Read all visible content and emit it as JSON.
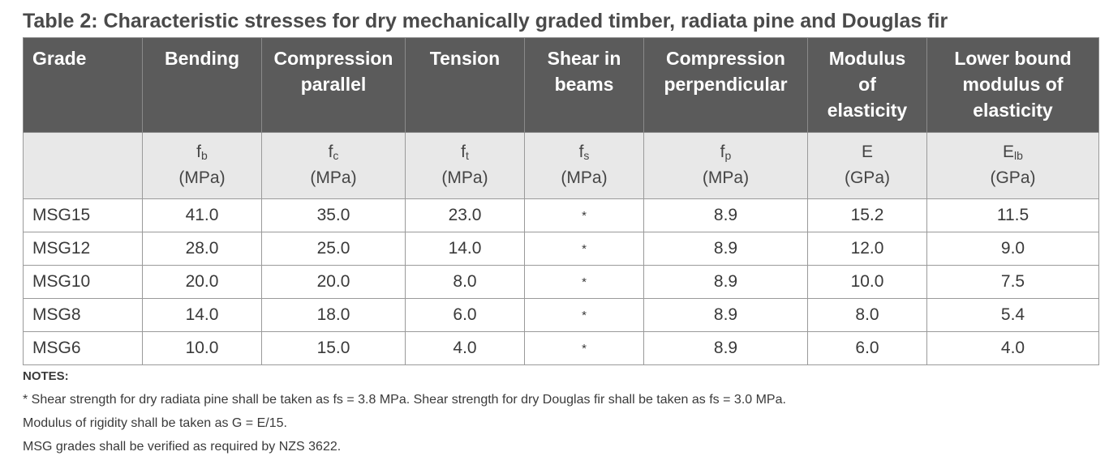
{
  "title": "Table 2: Characteristic stresses for dry mechanically graded timber, radiata pine and Douglas fir",
  "headers": [
    [
      "Grade"
    ],
    [
      "Bending"
    ],
    [
      "Compression",
      "parallel"
    ],
    [
      "Tension"
    ],
    [
      "Shear in",
      "beams"
    ],
    [
      "Compression",
      "perpendicular"
    ],
    [
      "Modulus",
      "of",
      "elasticity"
    ],
    [
      "Lower bound",
      "modulus of",
      "elasticity"
    ]
  ],
  "symbols": [
    {
      "base": "",
      "sub": "",
      "unit": ""
    },
    {
      "base": "f",
      "sub": "b",
      "unit": "(MPa)"
    },
    {
      "base": "f",
      "sub": "c",
      "unit": "(MPa)"
    },
    {
      "base": "f",
      "sub": "t",
      "unit": "(MPa)"
    },
    {
      "base": "f",
      "sub": "s",
      "unit": "(MPa)"
    },
    {
      "base": "f",
      "sub": "p",
      "unit": "(MPa)"
    },
    {
      "base": "E",
      "sub": "",
      "unit": "(GPa)"
    },
    {
      "base": "E",
      "sub": "lb",
      "unit": "(GPa)"
    }
  ],
  "rows": [
    [
      "MSG15",
      "41.0",
      "35.0",
      "23.0",
      "*",
      "8.9",
      "15.2",
      "11.5"
    ],
    [
      "MSG12",
      "28.0",
      "25.0",
      "14.0",
      "*",
      "8.9",
      "12.0",
      "9.0"
    ],
    [
      "MSG10",
      "20.0",
      "20.0",
      "8.0",
      "*",
      "8.9",
      "10.0",
      "7.5"
    ],
    [
      "MSG8",
      "14.0",
      "18.0",
      "6.0",
      "*",
      "8.9",
      "8.0",
      "5.4"
    ],
    [
      "MSG6",
      "10.0",
      "15.0",
      "4.0",
      "*",
      "8.9",
      "6.0",
      "4.0"
    ]
  ],
  "notes": {
    "title": "NOTES:",
    "items": [
      "* Shear strength for dry radiata pine shall be taken as fs = 3.8 MPa. Shear strength for dry Douglas fir shall be taken as fs = 3.0 MPa.",
      "Modulus of rigidity shall be taken as G = E/15.",
      "MSG grades shall be verified as required by NZS 3622."
    ]
  }
}
